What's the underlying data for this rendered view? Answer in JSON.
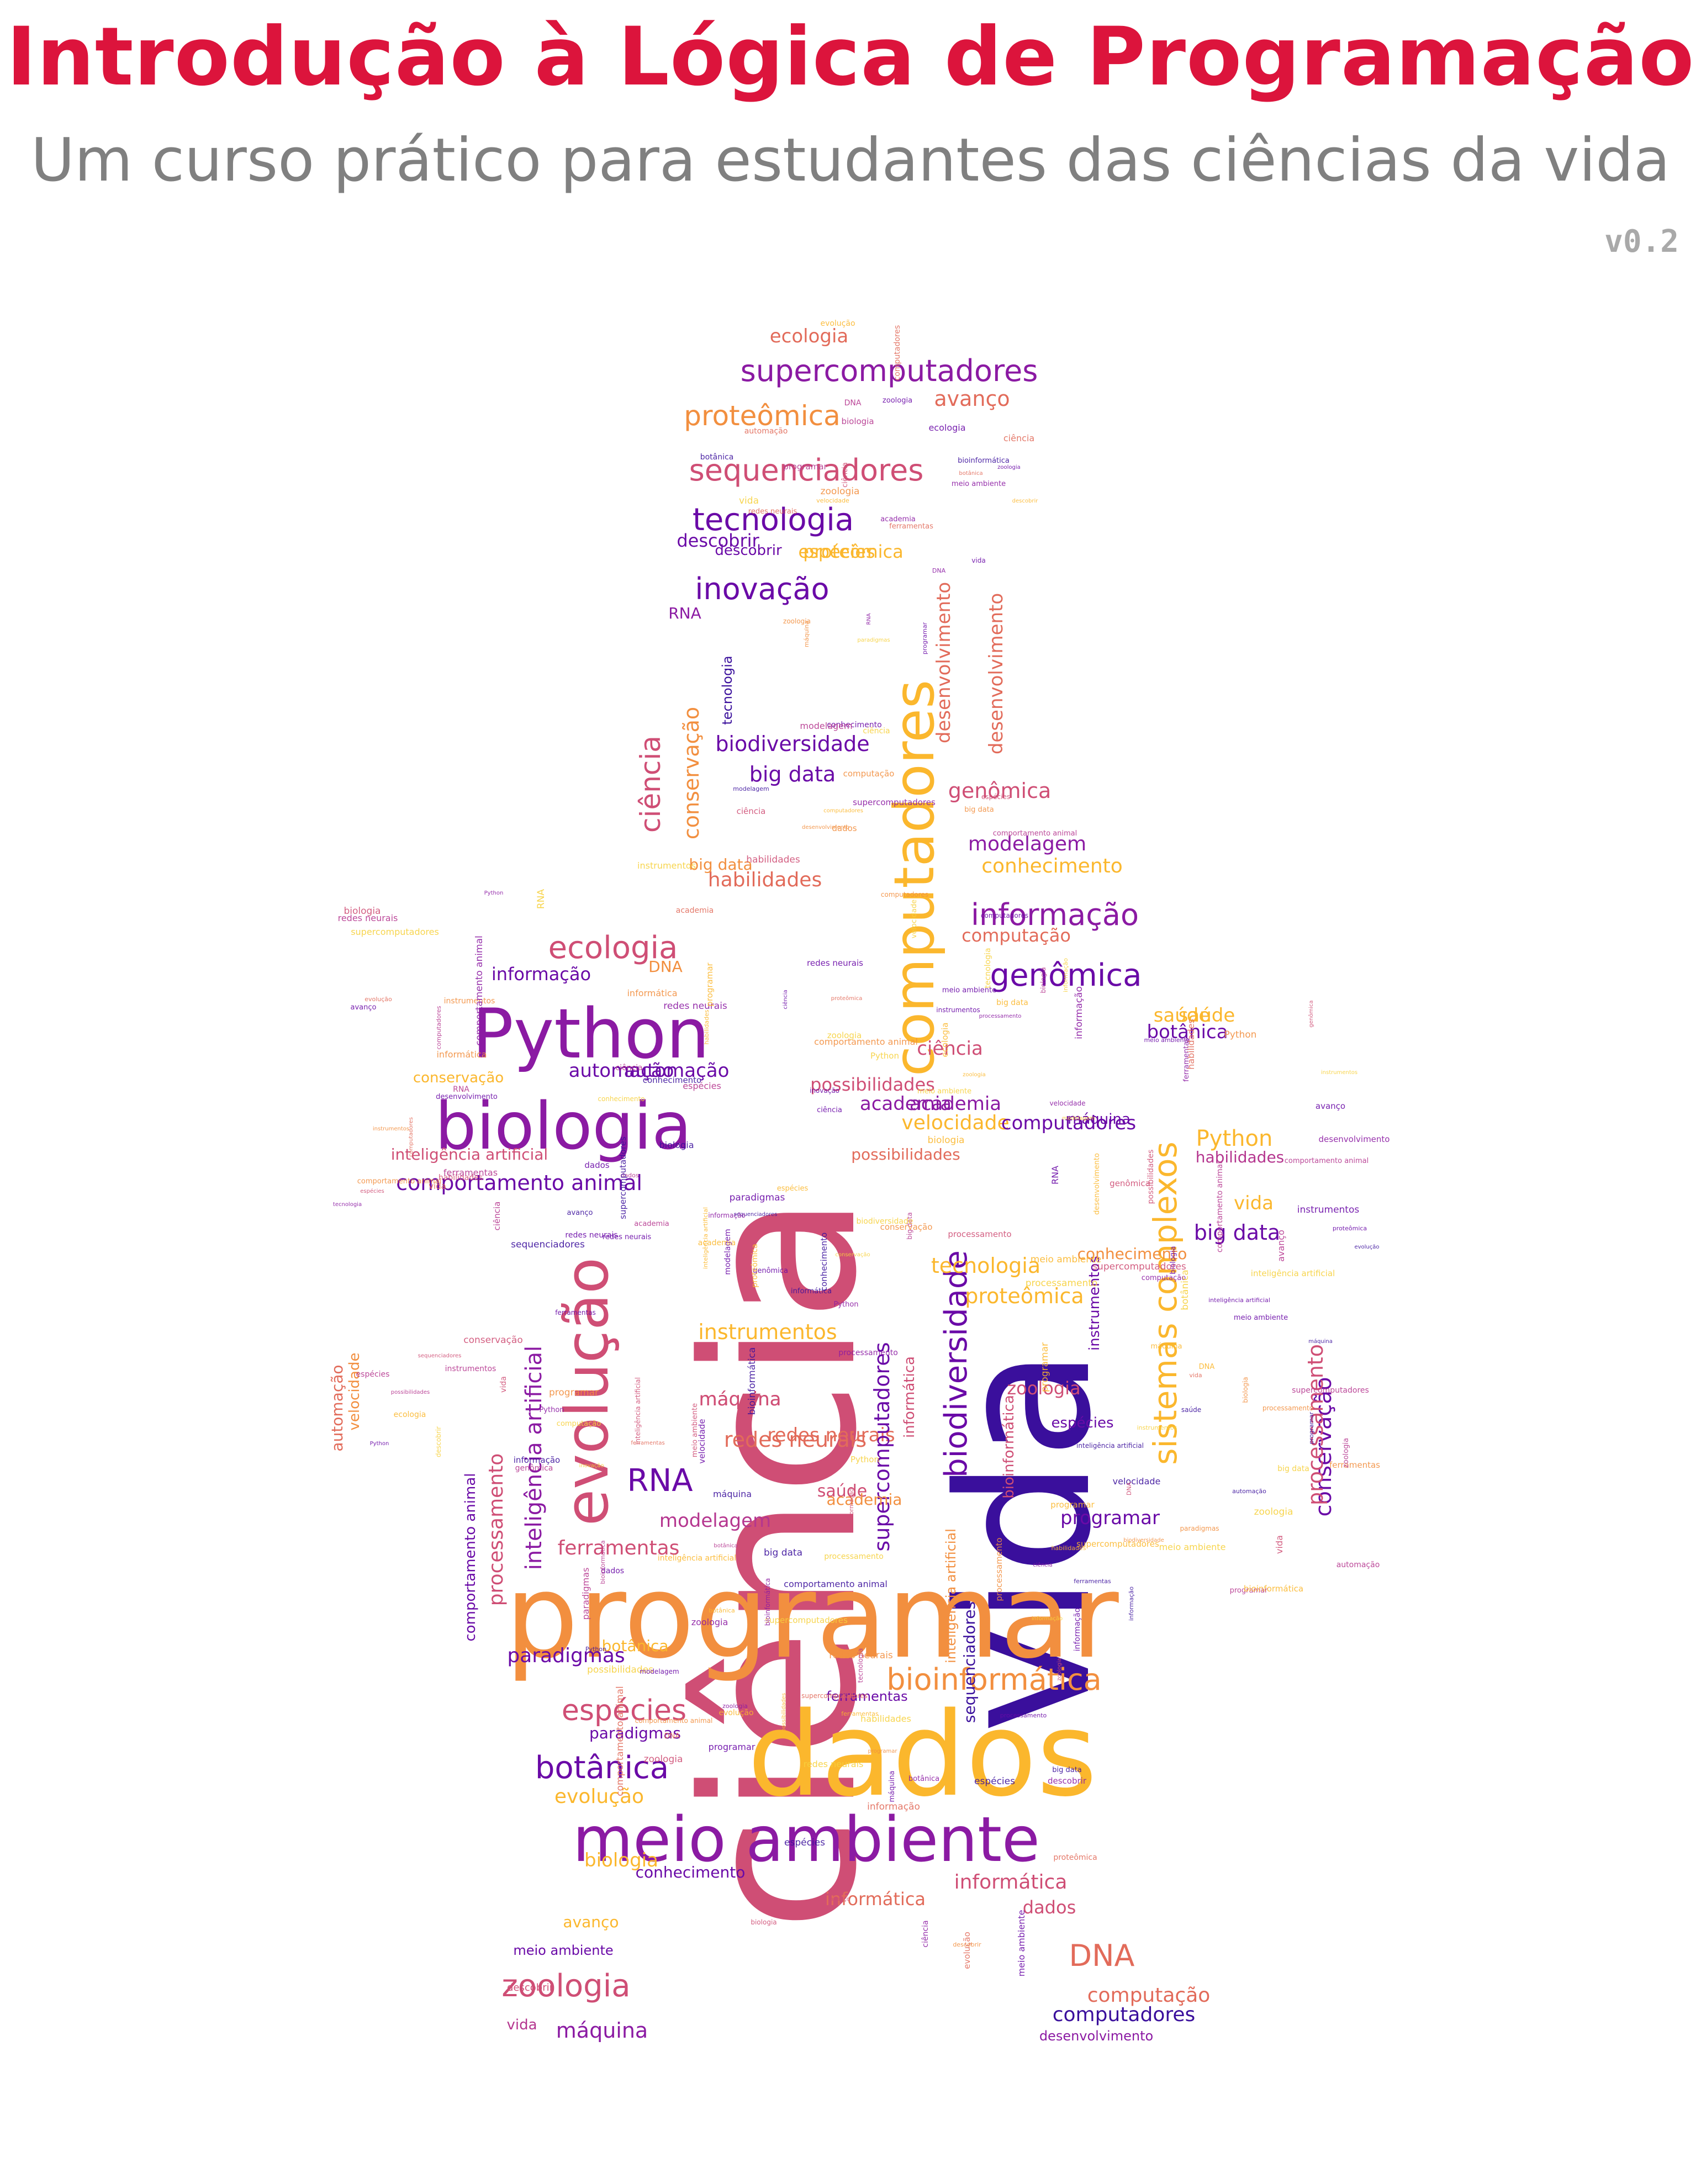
{
  "header": {
    "title": "Introdução à Lógica de Programação",
    "subtitle": "Um curso prático para estudantes das ciências da vida",
    "version": "v0.2"
  },
  "colors": {
    "title": "#dc143c",
    "subtitle": "#808080",
    "version": "#a9a9a9",
    "palette": [
      "#3a0f9c",
      "#6a0aa7",
      "#8b1aa3",
      "#b5368f",
      "#cf4e75",
      "#e26b5a",
      "#f28f3f",
      "#fbb72d",
      "#f7d13d"
    ]
  },
  "word_cloud": {
    "shape": "penguin",
    "words": [
      "ciência",
      "vida",
      "programar",
      "dados",
      "meio ambiente",
      "Python",
      "biologia",
      "computadores",
      "evolução",
      "biodiversidade",
      "sistemas complexos",
      "genômica",
      "informação",
      "ecologia",
      "tecnologia",
      "sequenciadores",
      "supercomputadores",
      "proteômica",
      "inovação",
      "bioinformática",
      "botânica",
      "espécies",
      "zoologia",
      "DNA",
      "RNA",
      "conservação",
      "inteligência artificial",
      "redes neurais",
      "modelagem",
      "ferramentas",
      "paradigmas",
      "habilidades",
      "conhecimento",
      "automação",
      "academia",
      "velocidade",
      "big data",
      "processamento",
      "comportamento animal",
      "instrumentos",
      "máquina",
      "possibilidades",
      "computação",
      "informática",
      "saúde",
      "desenvolvimento",
      "descobrir",
      "avanço"
    ]
  }
}
